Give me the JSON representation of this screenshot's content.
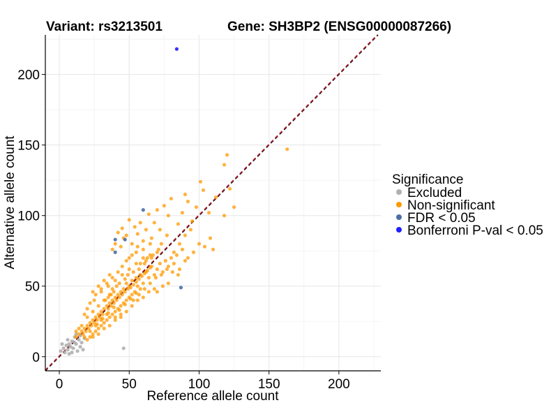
{
  "chart_data": {
    "type": "scatter",
    "title_left": "Variant: rs3213501",
    "title_right": "Gene: SH3BP2 (ENSG00000087266)",
    "xlabel": "Reference allele count",
    "ylabel": "Alternative allele count",
    "xlim": [
      -10,
      230
    ],
    "ylim": [
      -10,
      228
    ],
    "xticks": [
      0,
      50,
      100,
      150,
      200
    ],
    "yticks": [
      0,
      50,
      100,
      150,
      200
    ],
    "grid": true,
    "reference_lines": [
      {
        "style": "dashed",
        "color": "#000000",
        "slope": 1,
        "intercept": 0
      },
      {
        "style": "dashed",
        "color": "#b2182b",
        "slope": 1,
        "intercept": 0.5
      }
    ],
    "legend": {
      "title": "Significance",
      "placement": "right",
      "entries": [
        {
          "label": "Excluded",
          "color": "#b0b0b0"
        },
        {
          "label": "Non-significant",
          "color": "#ff9900"
        },
        {
          "label": "FDR < 0.05",
          "color": "#4a6fa5"
        },
        {
          "label": "Bonferroni P-val < 0.05",
          "color": "#1f1fff"
        }
      ]
    },
    "series": [
      {
        "name": "Excluded",
        "color": "#b0b0b0",
        "points": [
          [
            1,
            4
          ],
          [
            3,
            6
          ],
          [
            4,
            3
          ],
          [
            5,
            8
          ],
          [
            6,
            5
          ],
          [
            7,
            9
          ],
          [
            8,
            7
          ],
          [
            9,
            11
          ],
          [
            10,
            6
          ],
          [
            11,
            14
          ],
          [
            12,
            9
          ],
          [
            13,
            4
          ],
          [
            14,
            12
          ],
          [
            15,
            7
          ],
          [
            16,
            10
          ],
          [
            17,
            5
          ],
          [
            18,
            13
          ],
          [
            6,
            12
          ],
          [
            2,
            9
          ],
          [
            9,
            3
          ],
          [
            12,
            16
          ],
          [
            46,
            6
          ],
          [
            11,
            10
          ],
          [
            7,
            2
          ],
          [
            15,
            15
          ]
        ]
      },
      {
        "name": "Non-significant",
        "color": "#ff9900",
        "points": [
          [
            163,
            147
          ],
          [
            120,
            143
          ],
          [
            118,
            136
          ],
          [
            122,
            119
          ],
          [
            125,
            106
          ],
          [
            101,
            124
          ],
          [
            103,
            118
          ],
          [
            112,
            113
          ],
          [
            118,
            100
          ],
          [
            107,
            102
          ],
          [
            98,
            106
          ],
          [
            92,
            110
          ],
          [
            95,
            96
          ],
          [
            90,
            115
          ],
          [
            88,
            102
          ],
          [
            85,
            94
          ],
          [
            80,
            112
          ],
          [
            78,
            100
          ],
          [
            75,
            107
          ],
          [
            77,
            86
          ],
          [
            70,
            104
          ],
          [
            72,
            90
          ],
          [
            68,
            95
          ],
          [
            66,
            84
          ],
          [
            64,
            101
          ],
          [
            62,
            90
          ],
          [
            60,
            82
          ],
          [
            58,
            95
          ],
          [
            56,
            87
          ],
          [
            54,
            92
          ],
          [
            52,
            80
          ],
          [
            50,
            97
          ],
          [
            48,
            86
          ],
          [
            46,
            84
          ],
          [
            45,
            91
          ],
          [
            44,
            78
          ],
          [
            42,
            88
          ],
          [
            40,
            80
          ],
          [
            38,
            76
          ],
          [
            62,
            60
          ],
          [
            58,
            58
          ],
          [
            55,
            56
          ],
          [
            52,
            54
          ],
          [
            50,
            50
          ],
          [
            48,
            52
          ],
          [
            46,
            48
          ],
          [
            44,
            46
          ],
          [
            42,
            44
          ],
          [
            40,
            42
          ],
          [
            38,
            40
          ],
          [
            36,
            38
          ],
          [
            34,
            36
          ],
          [
            32,
            34
          ],
          [
            30,
            32
          ],
          [
            28,
            30
          ],
          [
            26,
            28
          ],
          [
            24,
            26
          ],
          [
            22,
            24
          ],
          [
            20,
            22
          ],
          [
            18,
            20
          ],
          [
            16,
            18
          ],
          [
            14,
            16
          ],
          [
            12,
            14
          ],
          [
            60,
            52
          ],
          [
            58,
            48
          ],
          [
            56,
            50
          ],
          [
            54,
            46
          ],
          [
            52,
            44
          ],
          [
            50,
            42
          ],
          [
            48,
            40
          ],
          [
            46,
            38
          ],
          [
            44,
            36
          ],
          [
            42,
            34
          ],
          [
            40,
            32
          ],
          [
            38,
            30
          ],
          [
            36,
            28
          ],
          [
            34,
            26
          ],
          [
            32,
            24
          ],
          [
            30,
            22
          ],
          [
            28,
            20
          ],
          [
            26,
            18
          ],
          [
            24,
            16
          ],
          [
            22,
            14
          ],
          [
            20,
            12
          ],
          [
            70,
            62
          ],
          [
            68,
            58
          ],
          [
            66,
            64
          ],
          [
            64,
            56
          ],
          [
            72,
            66
          ],
          [
            74,
            60
          ],
          [
            76,
            68
          ],
          [
            78,
            64
          ],
          [
            80,
            70
          ],
          [
            82,
            66
          ],
          [
            84,
            72
          ],
          [
            86,
            62
          ],
          [
            88,
            76
          ],
          [
            90,
            68
          ],
          [
            65,
            72
          ],
          [
            60,
            70
          ],
          [
            55,
            66
          ],
          [
            50,
            62
          ],
          [
            45,
            58
          ],
          [
            40,
            54
          ],
          [
            35,
            50
          ],
          [
            30,
            46
          ],
          [
            25,
            40
          ],
          [
            20,
            34
          ],
          [
            68,
            48
          ],
          [
            64,
            46
          ],
          [
            60,
            42
          ],
          [
            56,
            40
          ],
          [
            52,
            36
          ],
          [
            48,
            32
          ],
          [
            44,
            28
          ],
          [
            40,
            26
          ],
          [
            36,
            22
          ],
          [
            32,
            20
          ],
          [
            28,
            16
          ],
          [
            24,
            14
          ],
          [
            42,
            60
          ],
          [
            38,
            56
          ],
          [
            34,
            52
          ],
          [
            30,
            48
          ],
          [
            26,
            44
          ],
          [
            22,
            38
          ],
          [
            18,
            30
          ],
          [
            45,
            64
          ],
          [
            50,
            70
          ],
          [
            55,
            74
          ],
          [
            60,
            76
          ],
          [
            65,
            80
          ],
          [
            36,
            44
          ],
          [
            38,
            48
          ],
          [
            41,
            50
          ],
          [
            43,
            52
          ],
          [
            47,
            55
          ],
          [
            49,
            58
          ],
          [
            53,
            60
          ],
          [
            57,
            62
          ],
          [
            61,
            66
          ],
          [
            63,
            70
          ],
          [
            67,
            72
          ],
          [
            71,
            76
          ],
          [
            73,
            80
          ],
          [
            35,
            34
          ],
          [
            37,
            36
          ],
          [
            39,
            38
          ],
          [
            41,
            40
          ],
          [
            43,
            42
          ],
          [
            45,
            44
          ],
          [
            47,
            46
          ],
          [
            49,
            48
          ],
          [
            51,
            49
          ],
          [
            53,
            51
          ],
          [
            55,
            53
          ],
          [
            57,
            55
          ],
          [
            59,
            57
          ],
          [
            61,
            59
          ],
          [
            63,
            61
          ],
          [
            65,
            63
          ],
          [
            31,
            30
          ],
          [
            29,
            28
          ],
          [
            27,
            26
          ],
          [
            25,
            24
          ],
          [
            23,
            22
          ],
          [
            21,
            20
          ],
          [
            19,
            18
          ],
          [
            17,
            16
          ],
          [
            33,
            40
          ],
          [
            35,
            42
          ],
          [
            37,
            44
          ],
          [
            39,
            46
          ],
          [
            53,
            40
          ],
          [
            57,
            44
          ],
          [
            61,
            48
          ],
          [
            65,
            52
          ],
          [
            69,
            56
          ],
          [
            73,
            58
          ],
          [
            77,
            62
          ],
          [
            81,
            60
          ],
          [
            85,
            58
          ],
          [
            92,
            70
          ],
          [
            96,
            74
          ],
          [
            100,
            80
          ],
          [
            104,
            78
          ],
          [
            108,
            84
          ],
          [
            110,
            76
          ],
          [
            78,
            52
          ],
          [
            74,
            50
          ],
          [
            70,
            46
          ],
          [
            82,
            74
          ],
          [
            86,
            80
          ],
          [
            90,
            86
          ],
          [
            94,
            90
          ],
          [
            36,
            58
          ],
          [
            32,
            54
          ],
          [
            28,
            50
          ],
          [
            24,
            46
          ],
          [
            48,
            68
          ],
          [
            52,
            72
          ],
          [
            56,
            78
          ],
          [
            44,
            30
          ],
          [
            40,
            28
          ],
          [
            34,
            30
          ],
          [
            30,
            26
          ],
          [
            26,
            22
          ],
          [
            22,
            18
          ],
          [
            18,
            14
          ],
          [
            16,
            22
          ],
          [
            14,
            20
          ],
          [
            12,
            18
          ],
          [
            20,
            28
          ],
          [
            24,
            32
          ],
          [
            28,
            36
          ],
          [
            32,
            40
          ],
          [
            58,
            66
          ],
          [
            62,
            68
          ],
          [
            66,
            70
          ],
          [
            70,
            74
          ],
          [
            55,
            45
          ],
          [
            51,
            41
          ],
          [
            47,
            37
          ],
          [
            43,
            33
          ],
          [
            39,
            35
          ],
          [
            35,
            31
          ],
          [
            31,
            27
          ],
          [
            27,
            23
          ]
        ]
      },
      {
        "name": "FDR < 0.05",
        "color": "#4a6fa5",
        "points": [
          [
            60,
            104
          ],
          [
            40,
            83
          ],
          [
            47,
            83
          ],
          [
            40,
            74
          ],
          [
            87,
            49
          ]
        ]
      },
      {
        "name": "Bonferroni P-val < 0.05",
        "color": "#1f1fff",
        "points": [
          [
            84,
            218
          ]
        ]
      }
    ]
  }
}
